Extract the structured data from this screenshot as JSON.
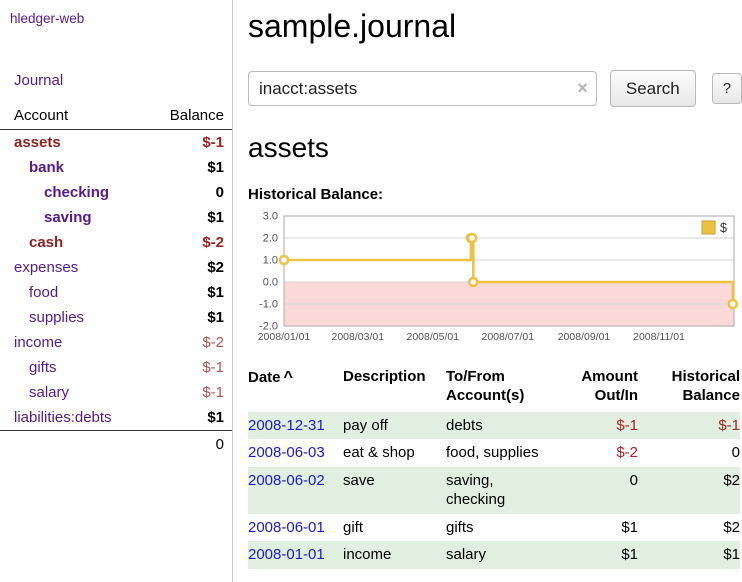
{
  "app": {
    "title": "hledger-web"
  },
  "sidebar": {
    "journal_link": "Journal",
    "accounts": {
      "header_account": "Account",
      "header_balance": "Balance",
      "rows": [
        {
          "name": "assets",
          "balance": "$-1"
        },
        {
          "name": "bank",
          "balance": "$1"
        },
        {
          "name": "checking",
          "balance": "0"
        },
        {
          "name": "saving",
          "balance": "$1"
        },
        {
          "name": "cash",
          "balance": "$-2"
        },
        {
          "name": "expenses",
          "balance": "$2"
        },
        {
          "name": "food",
          "balance": "$1"
        },
        {
          "name": "supplies",
          "balance": "$1"
        },
        {
          "name": "income",
          "balance": "$-2"
        },
        {
          "name": "gifts",
          "balance": "$-1"
        },
        {
          "name": "salary",
          "balance": "$-1"
        },
        {
          "name": "liabilities:debts",
          "balance": "$1"
        }
      ],
      "total": "0"
    }
  },
  "main": {
    "title": "sample.journal",
    "search": {
      "value": "inacct:assets",
      "clear_icon": "×",
      "search_button": "Search",
      "help_button": "?"
    },
    "account_heading": "assets",
    "chart_title": "Historical Balance:"
  },
  "chart_data": {
    "type": "line",
    "step": true,
    "title": "Historical Balance:",
    "x_domain": [
      "2008-01-01",
      "2009-01-01"
    ],
    "x_ticks": [
      "2008/01/01",
      "2008/03/01",
      "2008/05/01",
      "2008/07/01",
      "2008/09/01",
      "2008/11/01"
    ],
    "y_ticks": [
      "3.0",
      "2.0",
      "1.0",
      "0.0",
      "-1.0",
      "-2.0"
    ],
    "ylim": [
      -2,
      3
    ],
    "grid": true,
    "legend_position": "top-right",
    "negative_region_color": "#fcd9d9",
    "series": [
      {
        "name": "$",
        "color": "#edc240",
        "points": [
          {
            "date": "2008-01-01",
            "value": 1
          },
          {
            "date": "2008-06-01",
            "value": 2
          },
          {
            "date": "2008-06-02",
            "value": 2
          },
          {
            "date": "2008-06-03",
            "value": 0
          },
          {
            "date": "2008-12-31",
            "value": -1
          }
        ]
      }
    ]
  },
  "register": {
    "sort_asc": "^",
    "headers": {
      "date": "Date",
      "description": "Description",
      "account": "To/From Account(s)",
      "amount": "Amount Out/In",
      "balance": "Historical Balance"
    },
    "rows": [
      {
        "date": "2008-12-31",
        "description": "pay off",
        "accounts": "debts",
        "amount": "$-1",
        "balance": "$-1"
      },
      {
        "date": "2008-06-03",
        "description": "eat & shop",
        "accounts": "food, supplies",
        "amount": "$-2",
        "balance": "0"
      },
      {
        "date": "2008-06-02",
        "description": "save",
        "accounts": "saving, checking",
        "amount": "0",
        "balance": "$2"
      },
      {
        "date": "2008-06-01",
        "description": "gift",
        "accounts": "gifts",
        "amount": "$1",
        "balance": "$2"
      },
      {
        "date": "2008-01-01",
        "description": "income",
        "accounts": "salary",
        "amount": "$1",
        "balance": "$1"
      }
    ]
  }
}
